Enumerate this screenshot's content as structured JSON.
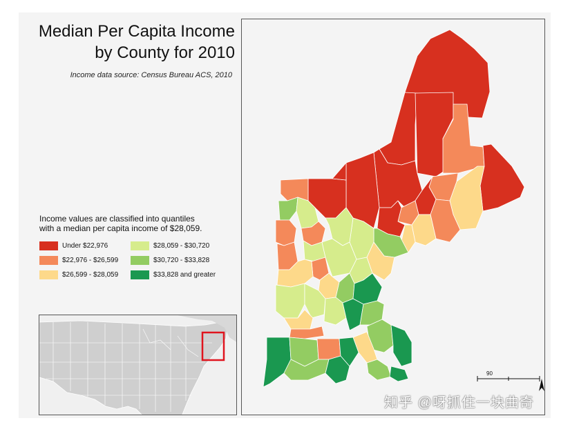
{
  "title_line1": "Median Per Capita Income",
  "title_line2": "by County for 2010",
  "source": "Income data source: Census Bureau ACS, 2010",
  "legend_note_line1": "Income values are classified into quantiles",
  "legend_note_line2": "with a median per capita income of $28,059.",
  "legend": [
    {
      "label": "Under $22,976",
      "color": "#d7301f"
    },
    {
      "label": "$22,976 - $26,599",
      "color": "#f4895a"
    },
    {
      "label": "$26,599 - $28,059",
      "color": "#fdd98a"
    },
    {
      "label": "$28,059 - $30,720",
      "color": "#d6ec8c"
    },
    {
      "label": "$30,720 - $33,828",
      "color": "#93cc62"
    },
    {
      "label": "$33,828 and greater",
      "color": "#1a9850"
    }
  ],
  "scale_value": "90",
  "north_label": "N",
  "watermark": "知乎 @呀抓住一块曲奇",
  "inset_highlight_color": "#e0141e"
}
